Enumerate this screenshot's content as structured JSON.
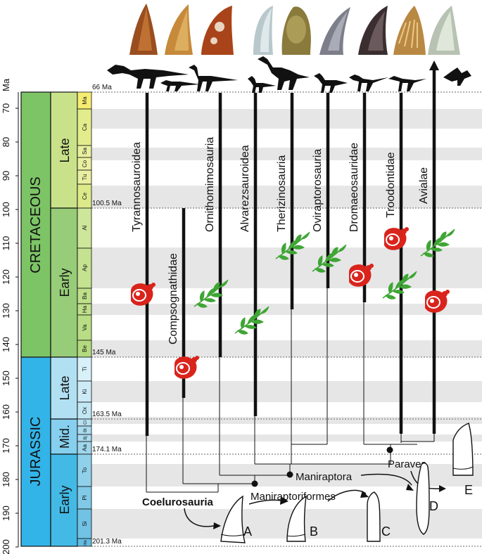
{
  "axis": {
    "unit": "Ma",
    "ticks": [
      70,
      80,
      90,
      100,
      110,
      120,
      130,
      140,
      150,
      160,
      170,
      180,
      190,
      200
    ]
  },
  "periods": [
    {
      "id": "cretaceous",
      "label": "CRETACEOUS",
      "color": "#7dc466"
    },
    {
      "id": "jurassic",
      "label": "JURASSIC",
      "color": "#33b4e8"
    }
  ],
  "epochs": [
    {
      "id": "late-cretaceous",
      "label": "Late",
      "color": "#c9e28a"
    },
    {
      "id": "early-cretaceous",
      "label": "Early",
      "color": "#97cc78"
    },
    {
      "id": "late-jurassic",
      "label": "Late",
      "color": "#b2e0f3"
    },
    {
      "id": "mid-jurassic",
      "label": "Mid.",
      "color": "#86cfee"
    },
    {
      "id": "early-jurassic",
      "label": "Early",
      "color": "#43bae5"
    }
  ],
  "stages": [
    {
      "label": "Ma",
      "color": "#f5ed72"
    },
    {
      "label": "Ca",
      "color": "#e2ec8c"
    },
    {
      "label": "Sa",
      "color": "#e8efa0"
    },
    {
      "label": "Co",
      "color": "#e8efa0"
    },
    {
      "label": "Tu",
      "color": "#e8efa0"
    },
    {
      "label": "Ce",
      "color": "#dcea8a"
    },
    {
      "label": "Al",
      "color": "#cde69a"
    },
    {
      "label": "Ap",
      "color": "#c4e290"
    },
    {
      "label": "Ba",
      "color": "#bfe08a"
    },
    {
      "label": "Ha",
      "color": "#bfe08a"
    },
    {
      "label": "Va",
      "color": "#b8dd84"
    },
    {
      "label": "Be",
      "color": "#b2da7e"
    },
    {
      "label": "Ti",
      "color": "#d8f0f8"
    },
    {
      "label": "Ki",
      "color": "#cdebf6"
    },
    {
      "label": "Ox",
      "color": "#c2e7f4"
    },
    {
      "label": "Cl",
      "color": "#b5e1f1"
    },
    {
      "label": "Bt",
      "color": "#a9dcef"
    },
    {
      "label": "Bj",
      "color": "#a9dcef"
    },
    {
      "label": "Aa",
      "color": "#9ed7ed"
    },
    {
      "label": "To",
      "color": "#8fd0ea"
    },
    {
      "label": "Pl",
      "color": "#80c9e7"
    },
    {
      "label": "Si",
      "color": "#71c2e4"
    },
    {
      "label": "He",
      "color": "#63bbe1"
    }
  ],
  "boundaries": [
    "66 Ma",
    "100.5 Ma",
    "145 Ma",
    "163.5 Ma",
    "174.1 Ma",
    "201.3 Ma"
  ],
  "clades": [
    "Tyrannosauroidea",
    "Compsognathidae",
    "Ornithomimosauria",
    "Alvarezsauroidea",
    "Therizinosauria",
    "Oviraptorosauria",
    "Dromaeosauridae",
    "Troodontidae",
    "Avialae"
  ],
  "nodes": [
    "Coelurosauria",
    "Maniraptoriformes",
    "Maniraptora",
    "Paraves"
  ],
  "tooth_types": [
    "A",
    "B",
    "C",
    "D",
    "E"
  ],
  "diet_icons": {
    "meat": "meat-icon",
    "plant": "plant-icon",
    "meat_color": "#d9241c",
    "plant_color": "#3fa535"
  }
}
